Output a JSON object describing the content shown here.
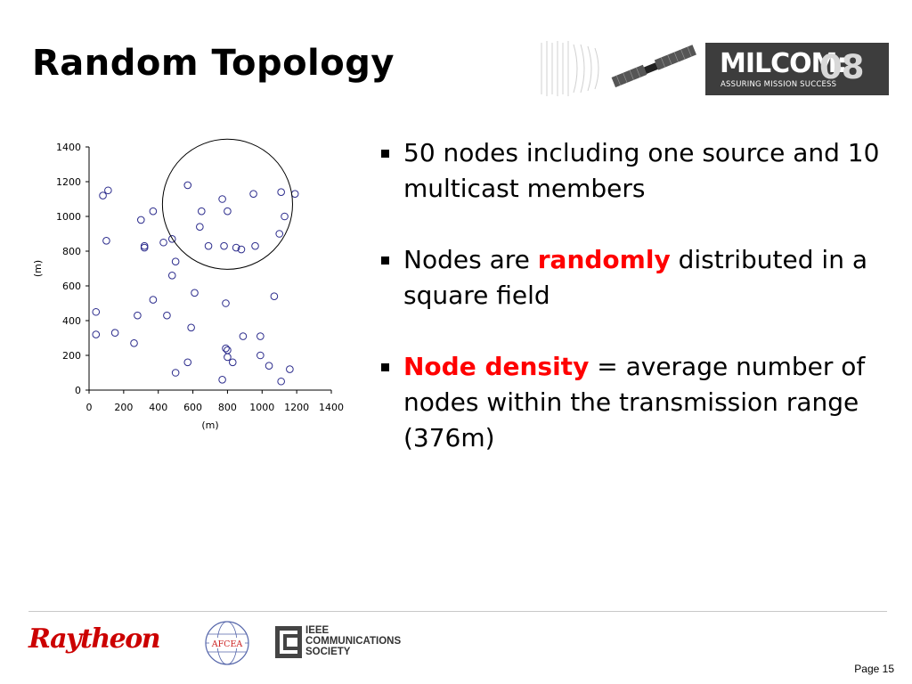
{
  "slide": {
    "title": "Random Topology",
    "page_label": "Page 15"
  },
  "header_logo": {
    "main": "MILCOM:",
    "number": "08",
    "tagline": "ASSURING MISSION SUCCESS"
  },
  "bullets": [
    {
      "parts": [
        {
          "text": "50 nodes including one source and 10 multicast members",
          "highlight": false
        }
      ]
    },
    {
      "parts": [
        {
          "text": "Nodes are ",
          "highlight": false
        },
        {
          "text": "randomly",
          "highlight": true
        },
        {
          "text": " distributed in a square field",
          "highlight": false
        }
      ]
    },
    {
      "parts": [
        {
          "text": "Node density",
          "highlight": true
        },
        {
          "text": " = average number of nodes within the transmission range (376m)",
          "highlight": false
        }
      ]
    }
  ],
  "footer": {
    "raytheon": "Raytheon",
    "afcea": "AFCEA",
    "ieee_lines": [
      "IEEE",
      "COMMUNICATIONS",
      "SOCIETY"
    ]
  },
  "colors": {
    "highlight": "#ff0000",
    "raytheon": "#cc0000",
    "node": "#2b2b8c",
    "milcom_box": "#3d3d3d"
  },
  "chart_data": {
    "type": "scatter",
    "xlabel": "(m)",
    "ylabel": "(m)",
    "xlim": [
      0,
      1400
    ],
    "ylim": [
      0,
      1400
    ],
    "xticks": [
      0,
      200,
      400,
      600,
      800,
      1000,
      1200,
      1400
    ],
    "yticks": [
      0,
      200,
      400,
      600,
      800,
      1000,
      1200,
      1400
    ],
    "grid": false,
    "points": [
      [
        80,
        1120
      ],
      [
        110,
        1150
      ],
      [
        100,
        860
      ],
      [
        300,
        980
      ],
      [
        370,
        1030
      ],
      [
        320,
        820
      ],
      [
        320,
        830
      ],
      [
        430,
        850
      ],
      [
        480,
        870
      ],
      [
        500,
        740
      ],
      [
        480,
        660
      ],
      [
        570,
        1180
      ],
      [
        650,
        1030
      ],
      [
        640,
        940
      ],
      [
        690,
        830
      ],
      [
        770,
        1100
      ],
      [
        800,
        1030
      ],
      [
        780,
        830
      ],
      [
        850,
        820
      ],
      [
        880,
        810
      ],
      [
        950,
        1130
      ],
      [
        960,
        830
      ],
      [
        1110,
        1140
      ],
      [
        1190,
        1130
      ],
      [
        1130,
        1000
      ],
      [
        1100,
        900
      ],
      [
        370,
        520
      ],
      [
        610,
        560
      ],
      [
        1070,
        540
      ],
      [
        790,
        500
      ],
      [
        40,
        450
      ],
      [
        280,
        430
      ],
      [
        450,
        430
      ],
      [
        590,
        360
      ],
      [
        40,
        320
      ],
      [
        150,
        330
      ],
      [
        260,
        270
      ],
      [
        890,
        310
      ],
      [
        990,
        310
      ],
      [
        790,
        240
      ],
      [
        800,
        230
      ],
      [
        800,
        190
      ],
      [
        830,
        160
      ],
      [
        990,
        200
      ],
      [
        1040,
        140
      ],
      [
        570,
        160
      ],
      [
        500,
        100
      ],
      [
        770,
        60
      ],
      [
        1110,
        50
      ],
      [
        1160,
        120
      ]
    ],
    "range_circle": {
      "center": [
        800,
        1070
      ],
      "radius": 376
    }
  }
}
